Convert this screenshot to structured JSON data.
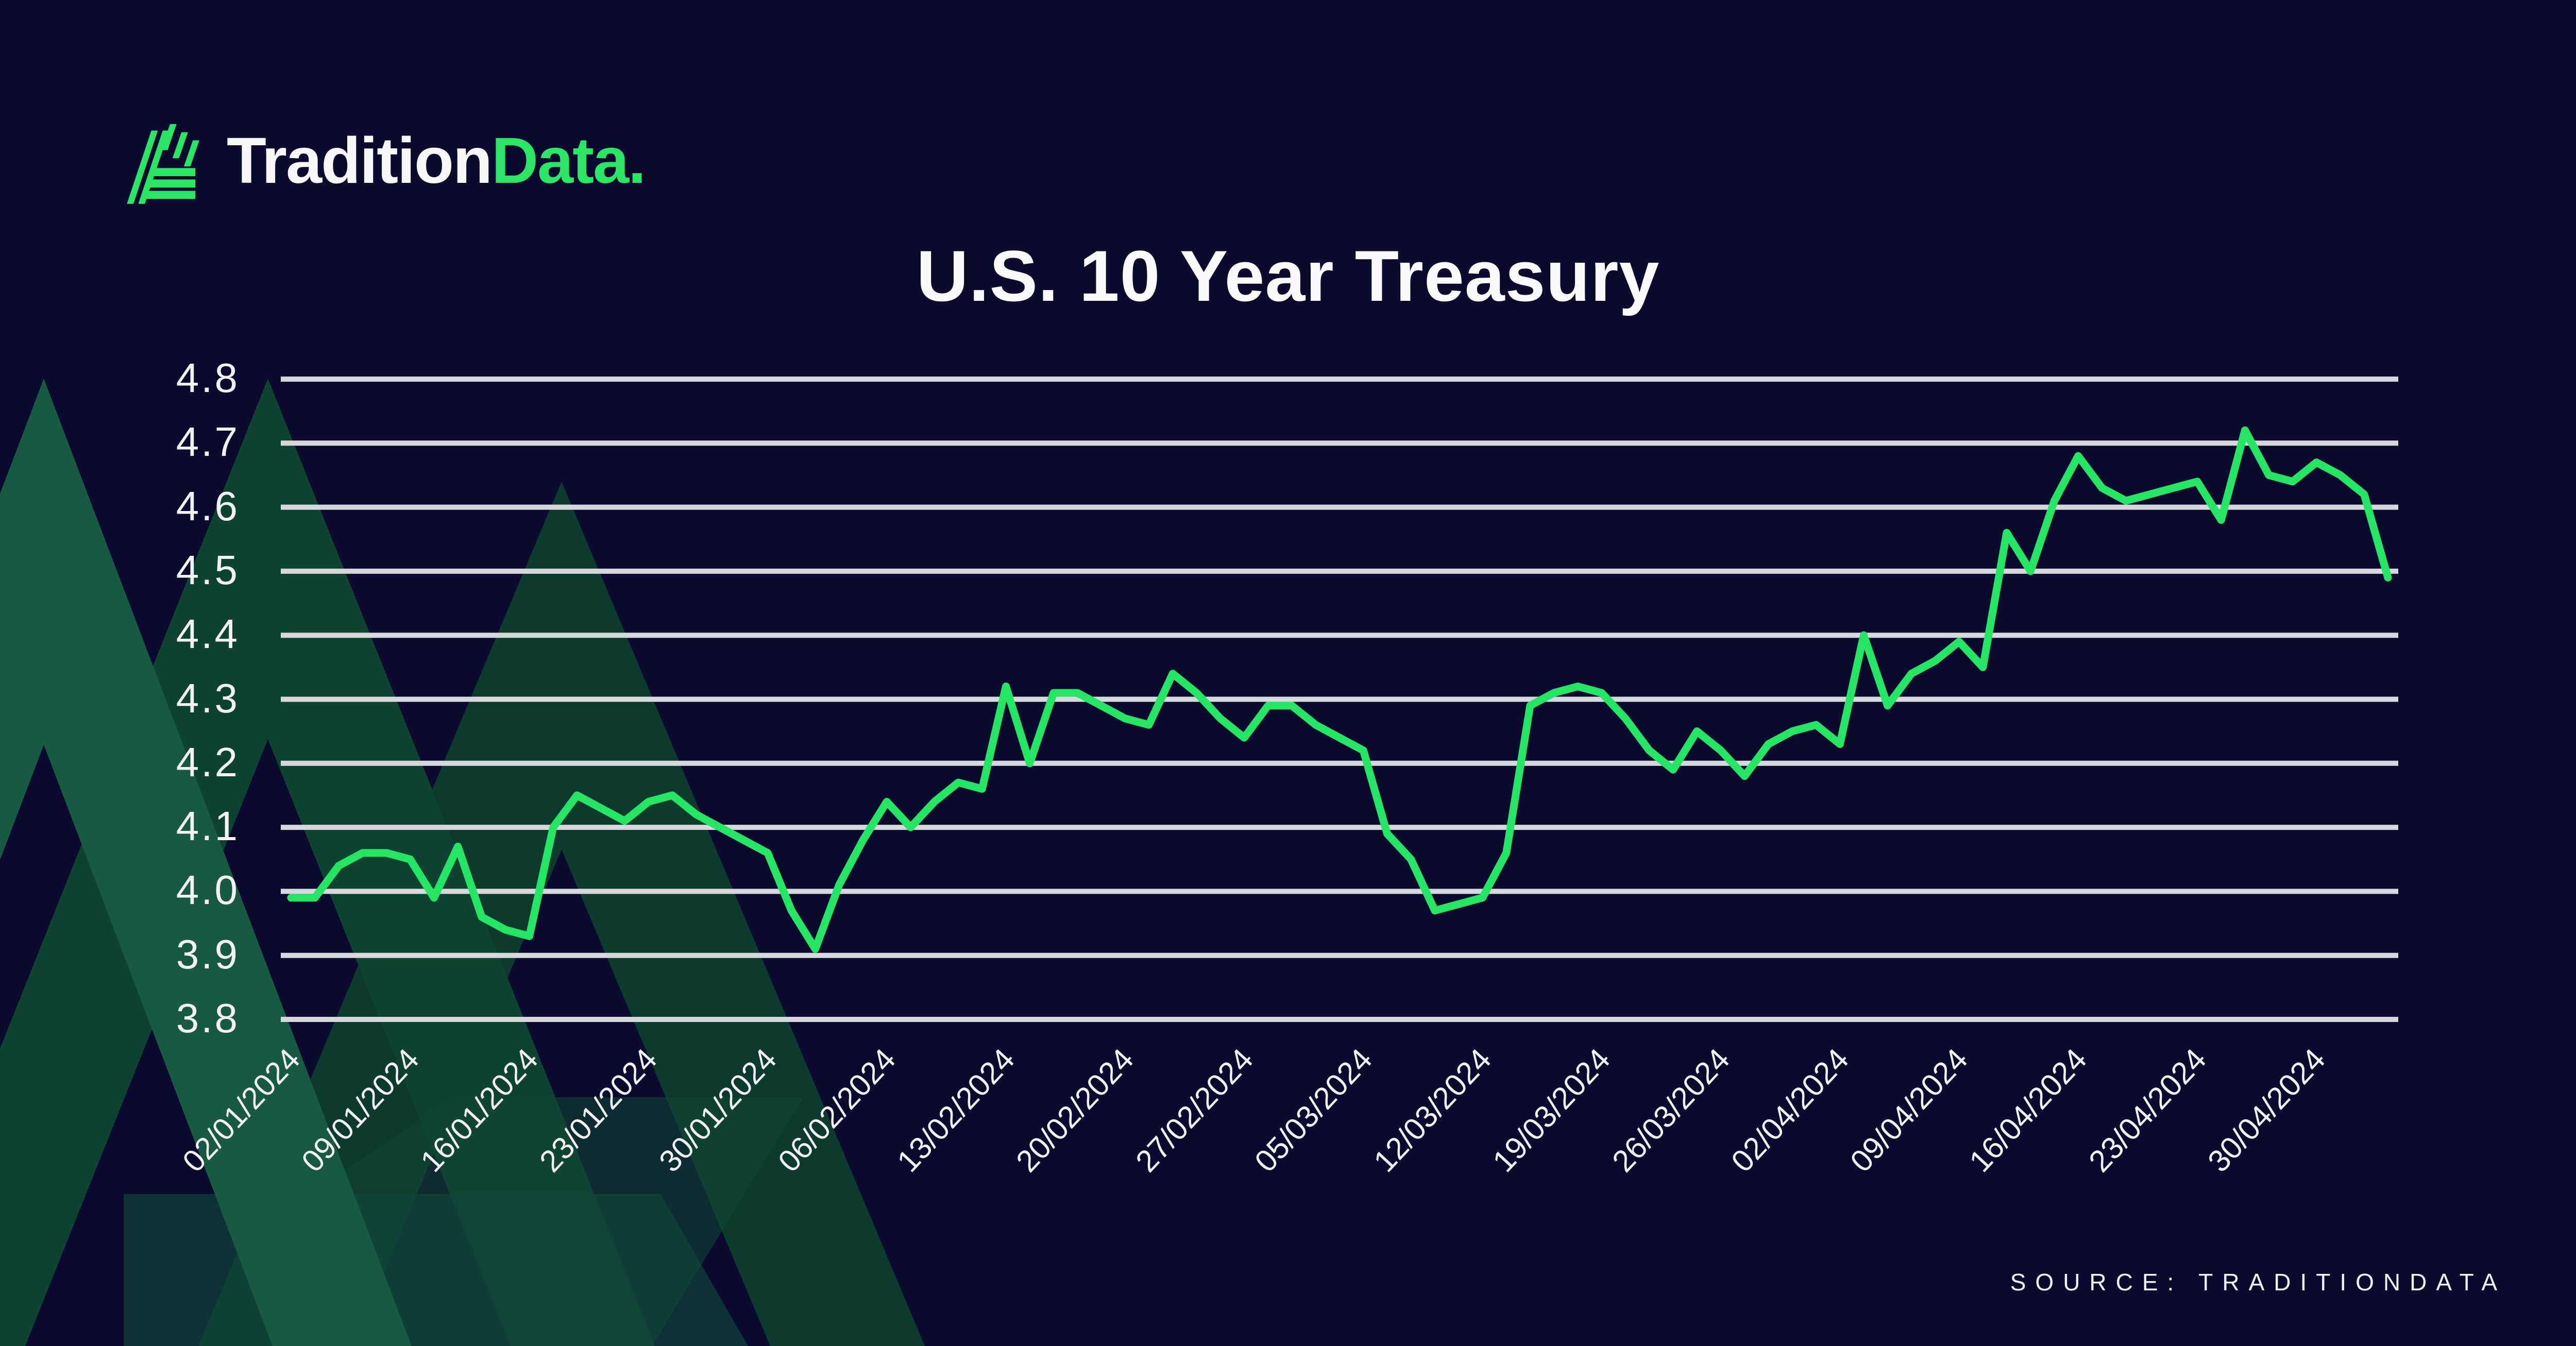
{
  "logo": {
    "brand_white": "Tradition",
    "brand_green": "Data.",
    "icon": "traditiondata-chevron-logo"
  },
  "title": "U.S. 10 Year Treasury",
  "source": "SOURCE: TRADITIONDATA",
  "chart_data": {
    "type": "line",
    "title": "U.S. 10 Year Treasury",
    "xlabel": "",
    "ylabel": "",
    "ylim": [
      3.8,
      4.8
    ],
    "grid": "horizontal",
    "legend": "none",
    "y_tick_labels": [
      "4.8",
      "4.7",
      "4.6",
      "4.5",
      "4.4",
      "4.3",
      "4.2",
      "4.1",
      "4.0",
      "3.9",
      "3.8"
    ],
    "y_ticks": [
      4.8,
      4.7,
      4.6,
      4.5,
      4.4,
      4.3,
      4.2,
      4.1,
      4.0,
      3.9,
      3.8
    ],
    "x_tick_every": 5,
    "x_tick_labels": [
      "02/01/2024",
      "09/01/2024",
      "16/01/2024",
      "23/01/2024",
      "30/01/2024",
      "06/02/2024",
      "13/02/2024",
      "20/02/2024",
      "27/02/2024",
      "05/03/2024",
      "12/03/2024",
      "19/03/2024",
      "26/03/2024",
      "02/04/2024",
      "09/04/2024",
      "16/04/2024",
      "23/04/2024",
      "30/04/2024"
    ],
    "series": [
      {
        "name": "U.S. 10 Year Treasury yield (%)",
        "dates": [
          "02/01/2024",
          "03/01/2024",
          "04/01/2024",
          "05/01/2024",
          "08/01/2024",
          "09/01/2024",
          "10/01/2024",
          "11/01/2024",
          "12/01/2024",
          "15/01/2024",
          "16/01/2024",
          "17/01/2024",
          "18/01/2024",
          "19/01/2024",
          "22/01/2024",
          "23/01/2024",
          "24/01/2024",
          "25/01/2024",
          "26/01/2024",
          "29/01/2024",
          "30/01/2024",
          "31/01/2024",
          "01/02/2024",
          "02/02/2024",
          "05/02/2024",
          "06/02/2024",
          "07/02/2024",
          "08/02/2024",
          "09/02/2024",
          "12/02/2024",
          "13/02/2024",
          "14/02/2024",
          "15/02/2024",
          "16/02/2024",
          "19/02/2024",
          "20/02/2024",
          "21/02/2024",
          "22/02/2024",
          "23/02/2024",
          "26/02/2024",
          "27/02/2024",
          "28/02/2024",
          "29/02/2024",
          "01/03/2024",
          "04/03/2024",
          "05/03/2024",
          "06/03/2024",
          "07/03/2024",
          "08/03/2024",
          "11/03/2024",
          "12/03/2024",
          "13/03/2024",
          "14/03/2024",
          "15/03/2024",
          "18/03/2024",
          "19/03/2024",
          "20/03/2024",
          "21/03/2024",
          "22/03/2024",
          "25/03/2024",
          "26/03/2024",
          "27/03/2024",
          "28/03/2024",
          "29/03/2024",
          "01/04/2024",
          "02/04/2024",
          "03/04/2024",
          "04/04/2024",
          "05/04/2024",
          "08/04/2024",
          "09/04/2024",
          "10/04/2024",
          "11/04/2024",
          "12/04/2024",
          "15/04/2024",
          "16/04/2024",
          "17/04/2024",
          "18/04/2024",
          "19/04/2024",
          "22/04/2024",
          "23/04/2024",
          "24/04/2024",
          "25/04/2024",
          "26/04/2024",
          "29/04/2024",
          "30/04/2024",
          "01/05/2024",
          "02/05/2024",
          "03/05/2024"
        ],
        "values": [
          3.99,
          3.99,
          4.04,
          4.06,
          4.06,
          4.05,
          3.99,
          4.07,
          3.96,
          3.94,
          3.93,
          4.1,
          4.15,
          4.13,
          4.11,
          4.14,
          4.15,
          4.12,
          4.1,
          4.08,
          4.06,
          3.97,
          3.91,
          4.01,
          4.08,
          4.14,
          4.1,
          4.14,
          4.17,
          4.16,
          4.32,
          4.2,
          4.31,
          4.31,
          4.29,
          4.27,
          4.26,
          4.34,
          4.31,
          4.27,
          4.24,
          4.29,
          4.29,
          4.26,
          4.24,
          4.22,
          4.09,
          4.05,
          3.97,
          3.98,
          3.99,
          4.06,
          4.29,
          4.31,
          4.32,
          4.31,
          4.27,
          4.22,
          4.19,
          4.25,
          4.22,
          4.18,
          4.23,
          4.25,
          4.26,
          4.23,
          4.4,
          4.29,
          4.34,
          4.36,
          4.39,
          4.35,
          4.56,
          4.5,
          4.61,
          4.68,
          4.63,
          4.61,
          4.62,
          4.63,
          4.64,
          4.58,
          4.72,
          4.65,
          4.64,
          4.67,
          4.65,
          4.62,
          4.49
        ]
      }
    ],
    "colors": {
      "line": "#25E564",
      "grid": "#D7D7DE",
      "background": "#0B0B30",
      "text": "#F2F2F6",
      "decor_green_bright": "#185A41",
      "decor_green_mid": "#0F4331",
      "decor_green_dark": "#0C3A2D"
    }
  }
}
